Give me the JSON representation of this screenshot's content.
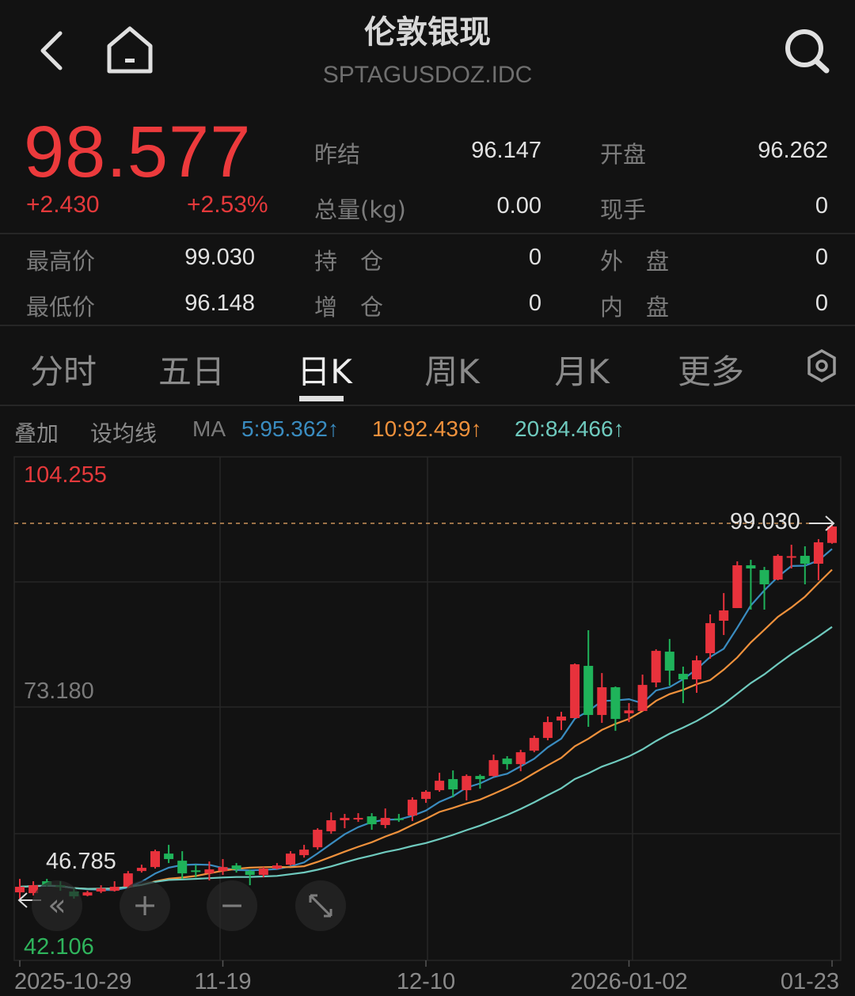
{
  "header": {
    "title": "伦敦银现",
    "code": "SPTAGUSDOZ.IDC",
    "icons": [
      "back-icon",
      "home-icon",
      "search-icon"
    ]
  },
  "quote": {
    "price": "98.577",
    "change": "+2.430",
    "change_pct": "+2.53%",
    "stats": [
      {
        "label": "昨结",
        "value": "96.147"
      },
      {
        "label": "开盘",
        "value": "96.262"
      },
      {
        "label": "总量(kg)",
        "value": "0.00"
      },
      {
        "label": "现手",
        "value": "0"
      },
      {
        "label": "最高价",
        "value": "99.030"
      },
      {
        "label": "持　仓",
        "value": "0"
      },
      {
        "label": "外　盘",
        "value": "0"
      },
      {
        "label": "最低价",
        "value": "96.148"
      },
      {
        "label": "增　仓",
        "value": "0"
      },
      {
        "label": "内　盘",
        "value": "0"
      }
    ],
    "up_color": "#ec3a3c"
  },
  "tabs": [
    {
      "label": "分时"
    },
    {
      "label": "五日"
    },
    {
      "label": "日K",
      "active": true
    },
    {
      "label": "周K"
    },
    {
      "label": "月K"
    },
    {
      "label": "更多"
    }
  ],
  "indicator_bar": {
    "overlay": "叠加",
    "set_ma": "设均线",
    "ma_label": "MA",
    "ma5": "5:95.362↑",
    "ma10": "10:92.439↑",
    "ma20": "20:84.466↑"
  },
  "controls": {
    "back_far": "«",
    "zoom_in": "+",
    "zoom_out": "−"
  },
  "chart_data": {
    "type": "candlestick",
    "y_max_label": "104.255",
    "y_mid_label": "73.180",
    "y_min_label": "42.106",
    "ylim": [
      42.106,
      104.255
    ],
    "high_marker": "99.030",
    "left_marker": "46.785",
    "x_tick_labels": [
      {
        "label": "2025-10-29",
        "index": 0
      },
      {
        "label": "11-19",
        "index": 15
      },
      {
        "label": "12-10",
        "index": 30
      },
      {
        "label": "2026-01-02",
        "index": 45
      },
      {
        "label": "01-23",
        "index": 60
      }
    ],
    "colors": {
      "up": "#e8323c",
      "down": "#1fb35a",
      "ma5": "#3a8cc0",
      "ma10": "#ef913c",
      "ma20": "#6fcabe"
    },
    "ma_periods": [
      5,
      10,
      20
    ],
    "candles": [
      [
        47.11,
        49.0,
        46.22,
        47.89
      ],
      [
        47.0,
        48.67,
        46.66,
        48.11
      ],
      [
        48.67,
        49.0,
        47.89,
        48.11
      ],
      [
        48.11,
        48.67,
        47.33,
        47.89
      ],
      [
        47.22,
        47.67,
        46.22,
        46.55
      ],
      [
        46.66,
        47.33,
        46.55,
        47.11
      ],
      [
        47.22,
        48.11,
        47.0,
        47.67
      ],
      [
        47.33,
        48.67,
        47.22,
        47.89
      ],
      [
        47.89,
        50.11,
        47.67,
        49.78
      ],
      [
        50.11,
        51.0,
        49.89,
        50.56
      ],
      [
        50.67,
        53.12,
        50.45,
        52.9
      ],
      [
        52.56,
        53.79,
        51.23,
        51.79
      ],
      [
        51.56,
        52.9,
        49.0,
        49.78
      ],
      [
        50.2,
        51.0,
        49.22,
        50.11
      ],
      [
        49.78,
        51.45,
        48.78,
        50.34
      ],
      [
        50.11,
        51.79,
        49.56,
        50.67
      ],
      [
        50.89,
        51.23,
        49.89,
        50.34
      ],
      [
        50.11,
        50.34,
        48.11,
        49.56
      ],
      [
        49.56,
        50.67,
        49.22,
        50.45
      ],
      [
        50.45,
        51.23,
        50.34,
        50.89
      ],
      [
        51.0,
        52.9,
        50.89,
        52.56
      ],
      [
        52.34,
        53.79,
        52.0,
        53.12
      ],
      [
        53.45,
        56.13,
        53.12,
        55.91
      ],
      [
        55.7,
        58.36,
        55.35,
        57.25
      ],
      [
        57.25,
        58.14,
        56.13,
        57.58
      ],
      [
        57.4,
        58.25,
        57.02,
        57.58
      ],
      [
        57.8,
        58.25,
        55.91,
        56.69
      ],
      [
        56.58,
        58.91,
        56.13,
        57.58
      ],
      [
        57.5,
        58.14,
        57.02,
        57.4
      ],
      [
        57.91,
        60.48,
        57.14,
        60.14
      ],
      [
        60.25,
        61.48,
        59.7,
        61.26
      ],
      [
        61.48,
        63.93,
        61.26,
        62.81
      ],
      [
        63.04,
        64.26,
        60.48,
        61.59
      ],
      [
        61.48,
        63.7,
        60.04,
        63.48
      ],
      [
        63.48,
        63.7,
        61.7,
        63.04
      ],
      [
        63.48,
        66.49,
        63.37,
        65.71
      ],
      [
        65.93,
        66.27,
        64.37,
        65.15
      ],
      [
        65.15,
        67.16,
        64.15,
        66.82
      ],
      [
        67.04,
        69.16,
        66.82,
        68.83
      ],
      [
        68.83,
        71.84,
        68.5,
        71.06
      ],
      [
        71.28,
        72.51,
        69.94,
        71.84
      ],
      [
        71.62,
        79.3,
        71.62,
        79.19
      ],
      [
        78.97,
        83.98,
        70.39,
        72.06
      ],
      [
        72.06,
        77.96,
        70.95,
        75.96
      ],
      [
        75.96,
        76.07,
        69.83,
        71.5
      ],
      [
        72.3,
        73.73,
        71.06,
        72.7
      ],
      [
        72.62,
        77.74,
        72.62,
        76.29
      ],
      [
        76.63,
        81.3,
        75.96,
        81.08
      ],
      [
        80.97,
        82.75,
        76.18,
        78.3
      ],
      [
        77.85,
        78.86,
        73.73,
        77.07
      ],
      [
        77.07,
        80.41,
        75.18,
        79.75
      ],
      [
        80.75,
        86.21,
        79.97,
        84.98
      ],
      [
        85.32,
        89.21,
        83.31,
        86.77
      ],
      [
        87.1,
        93.67,
        87.1,
        93.12
      ],
      [
        93.12,
        93.89,
        86.88,
        92.67
      ],
      [
        92.45,
        92.89,
        86.88,
        90.44
      ],
      [
        91.11,
        94.67,
        91.0,
        94.45
      ],
      [
        94.2,
        96.01,
        92.67,
        94.4
      ],
      [
        94.45,
        95.79,
        90.44,
        93.34
      ],
      [
        93.34,
        96.8,
        91.0,
        96.35
      ],
      [
        96.262,
        99.03,
        96.148,
        98.577
      ]
    ]
  }
}
